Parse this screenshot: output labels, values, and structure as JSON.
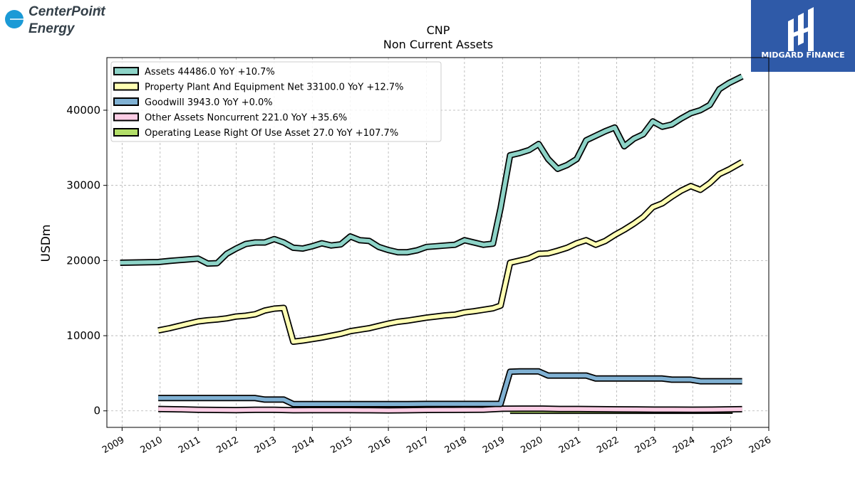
{
  "branding": {
    "company_logo_line1": "CenterPoint",
    "company_logo_line2": "Energy",
    "company_logo_mark": "®",
    "publisher_logo_text": "MIDGARD FINANCE",
    "publisher_color": "#2f5aa8"
  },
  "chart_data": {
    "type": "line",
    "title": "CNP",
    "subtitle": "Non Current  Assets",
    "xlabel": "",
    "ylabel": "USDm",
    "xlim": [
      2008.6,
      2026.0
    ],
    "ylim": [
      -2200,
      47000
    ],
    "x_ticks": [
      "2009",
      "2010",
      "2011",
      "2012",
      "2013",
      "2014",
      "2015",
      "2016",
      "2017",
      "2018",
      "2019",
      "2020",
      "2021",
      "2022",
      "2023",
      "2024",
      "2025",
      "2026"
    ],
    "y_ticks": [
      "0",
      "10000",
      "20000",
      "30000",
      "40000"
    ],
    "y_tick_values": [
      0,
      10000,
      20000,
      30000,
      40000
    ],
    "grid": true,
    "legend_position": "top-left",
    "series": [
      {
        "name": "Assets  44486.0 YoY +10.7%",
        "color": "#8dd3c7",
        "points": [
          [
            2008.95,
            19700
          ],
          [
            2009.95,
            19800
          ],
          [
            2010.25,
            19950
          ],
          [
            2010.5,
            20050
          ],
          [
            2010.75,
            20150
          ],
          [
            2011.0,
            20250
          ],
          [
            2011.25,
            19600
          ],
          [
            2011.5,
            19650
          ],
          [
            2011.75,
            20900
          ],
          [
            2012.0,
            21600
          ],
          [
            2012.25,
            22200
          ],
          [
            2012.5,
            22400
          ],
          [
            2012.75,
            22400
          ],
          [
            2013.0,
            22850
          ],
          [
            2013.25,
            22400
          ],
          [
            2013.5,
            21700
          ],
          [
            2013.75,
            21600
          ],
          [
            2014.0,
            21900
          ],
          [
            2014.25,
            22300
          ],
          [
            2014.5,
            22000
          ],
          [
            2014.75,
            22150
          ],
          [
            2015.0,
            23200
          ],
          [
            2015.25,
            22700
          ],
          [
            2015.5,
            22600
          ],
          [
            2015.75,
            21800
          ],
          [
            2016.0,
            21400
          ],
          [
            2016.25,
            21100
          ],
          [
            2016.5,
            21100
          ],
          [
            2016.75,
            21350
          ],
          [
            2017.0,
            21800
          ],
          [
            2017.25,
            21900
          ],
          [
            2017.5,
            22000
          ],
          [
            2017.75,
            22100
          ],
          [
            2018.0,
            22700
          ],
          [
            2018.25,
            22400
          ],
          [
            2018.5,
            22100
          ],
          [
            2018.75,
            22250
          ],
          [
            2018.95,
            27000
          ],
          [
            2019.2,
            34000
          ],
          [
            2019.45,
            34300
          ],
          [
            2019.7,
            34700
          ],
          [
            2019.95,
            35500
          ],
          [
            2020.2,
            33500
          ],
          [
            2020.45,
            32200
          ],
          [
            2020.7,
            32700
          ],
          [
            2020.95,
            33500
          ],
          [
            2021.2,
            36000
          ],
          [
            2021.45,
            36600
          ],
          [
            2021.7,
            37200
          ],
          [
            2021.95,
            37700
          ],
          [
            2022.2,
            35200
          ],
          [
            2022.45,
            36200
          ],
          [
            2022.7,
            36800
          ],
          [
            2022.95,
            38500
          ],
          [
            2023.2,
            37800
          ],
          [
            2023.45,
            38100
          ],
          [
            2023.7,
            38900
          ],
          [
            2023.95,
            39600
          ],
          [
            2024.2,
            40000
          ],
          [
            2024.45,
            40700
          ],
          [
            2024.7,
            42800
          ],
          [
            2024.95,
            43600
          ],
          [
            2025.3,
            44486
          ]
        ]
      },
      {
        "name": "Property Plant And Equipment Net  33100.0 YoY +12.7%",
        "color": "#ffffb3",
        "points": [
          [
            2009.95,
            10700
          ],
          [
            2010.25,
            11000
          ],
          [
            2010.5,
            11300
          ],
          [
            2010.75,
            11600
          ],
          [
            2011.0,
            11900
          ],
          [
            2011.25,
            12050
          ],
          [
            2011.5,
            12150
          ],
          [
            2011.75,
            12300
          ],
          [
            2012.0,
            12550
          ],
          [
            2012.25,
            12650
          ],
          [
            2012.5,
            12850
          ],
          [
            2012.75,
            13350
          ],
          [
            2013.0,
            13600
          ],
          [
            2013.25,
            13700
          ],
          [
            2013.5,
            9200
          ],
          [
            2013.75,
            9350
          ],
          [
            2014.0,
            9550
          ],
          [
            2014.25,
            9750
          ],
          [
            2014.5,
            10000
          ],
          [
            2014.75,
            10250
          ],
          [
            2015.0,
            10600
          ],
          [
            2015.25,
            10800
          ],
          [
            2015.5,
            11000
          ],
          [
            2015.75,
            11300
          ],
          [
            2016.0,
            11600
          ],
          [
            2016.25,
            11850
          ],
          [
            2016.5,
            12000
          ],
          [
            2016.75,
            12200
          ],
          [
            2017.0,
            12400
          ],
          [
            2017.25,
            12550
          ],
          [
            2017.5,
            12700
          ],
          [
            2017.75,
            12800
          ],
          [
            2018.0,
            13100
          ],
          [
            2018.25,
            13250
          ],
          [
            2018.5,
            13450
          ],
          [
            2018.75,
            13650
          ],
          [
            2018.95,
            14000
          ],
          [
            2019.2,
            19700
          ],
          [
            2019.45,
            20000
          ],
          [
            2019.7,
            20300
          ],
          [
            2019.95,
            20900
          ],
          [
            2020.2,
            20950
          ],
          [
            2020.45,
            21300
          ],
          [
            2020.7,
            21700
          ],
          [
            2020.95,
            22300
          ],
          [
            2021.2,
            22700
          ],
          [
            2021.45,
            22100
          ],
          [
            2021.7,
            22600
          ],
          [
            2021.95,
            23400
          ],
          [
            2022.2,
            24100
          ],
          [
            2022.45,
            24900
          ],
          [
            2022.7,
            25800
          ],
          [
            2022.95,
            27100
          ],
          [
            2023.2,
            27600
          ],
          [
            2023.45,
            28500
          ],
          [
            2023.7,
            29300
          ],
          [
            2023.95,
            29900
          ],
          [
            2024.2,
            29400
          ],
          [
            2024.45,
            30300
          ],
          [
            2024.7,
            31500
          ],
          [
            2024.95,
            32100
          ],
          [
            2025.3,
            33100
          ]
        ]
      },
      {
        "name": "Goodwill  3943.0 YoY +0.0%",
        "color": "#80b1d3",
        "points": [
          [
            2009.95,
            1700
          ],
          [
            2010.5,
            1700
          ],
          [
            2011.0,
            1700
          ],
          [
            2011.5,
            1700
          ],
          [
            2012.0,
            1700
          ],
          [
            2012.5,
            1700
          ],
          [
            2012.75,
            1500
          ],
          [
            2013.0,
            1500
          ],
          [
            2013.25,
            1500
          ],
          [
            2013.5,
            900
          ],
          [
            2014.0,
            900
          ],
          [
            2014.5,
            900
          ],
          [
            2015.0,
            900
          ],
          [
            2015.5,
            900
          ],
          [
            2016.0,
            900
          ],
          [
            2016.5,
            900
          ],
          [
            2017.0,
            920
          ],
          [
            2017.5,
            920
          ],
          [
            2018.0,
            920
          ],
          [
            2018.5,
            920
          ],
          [
            2018.95,
            920
          ],
          [
            2019.2,
            5200
          ],
          [
            2019.45,
            5250
          ],
          [
            2019.7,
            5250
          ],
          [
            2019.95,
            5250
          ],
          [
            2020.2,
            4700
          ],
          [
            2020.45,
            4700
          ],
          [
            2020.7,
            4700
          ],
          [
            2020.95,
            4700
          ],
          [
            2021.2,
            4700
          ],
          [
            2021.45,
            4300
          ],
          [
            2021.7,
            4300
          ],
          [
            2021.95,
            4300
          ],
          [
            2022.5,
            4300
          ],
          [
            2022.95,
            4300
          ],
          [
            2023.2,
            4300
          ],
          [
            2023.45,
            4150
          ],
          [
            2023.95,
            4150
          ],
          [
            2024.2,
            3943
          ],
          [
            2024.7,
            3943
          ],
          [
            2025.3,
            3943
          ]
        ]
      },
      {
        "name": "Other Assets Noncurrent  221.0 YoY +35.6%",
        "color": "#fccde5",
        "points": [
          [
            2009.95,
            250
          ],
          [
            2010.5,
            200
          ],
          [
            2011.0,
            150
          ],
          [
            2011.5,
            120
          ],
          [
            2012.0,
            100
          ],
          [
            2012.5,
            150
          ],
          [
            2013.0,
            150
          ],
          [
            2013.5,
            80
          ],
          [
            2014.0,
            100
          ],
          [
            2014.5,
            100
          ],
          [
            2015.0,
            100
          ],
          [
            2015.5,
            80
          ],
          [
            2016.0,
            60
          ],
          [
            2016.5,
            80
          ],
          [
            2017.0,
            120
          ],
          [
            2017.5,
            130
          ],
          [
            2018.0,
            150
          ],
          [
            2018.5,
            160
          ],
          [
            2019.0,
            280
          ],
          [
            2019.5,
            300
          ],
          [
            2020.0,
            300
          ],
          [
            2020.5,
            250
          ],
          [
            2021.0,
            250
          ],
          [
            2021.5,
            220
          ],
          [
            2022.0,
            200
          ],
          [
            2022.5,
            180
          ],
          [
            2023.0,
            170
          ],
          [
            2023.5,
            170
          ],
          [
            2024.0,
            160
          ],
          [
            2024.5,
            163
          ],
          [
            2025.3,
            221
          ]
        ]
      },
      {
        "name": "Operating Lease Right Of Use Asset  27.0 YoY +107.7%",
        "color": "#b3de69",
        "points": [
          [
            2019.2,
            13
          ],
          [
            2020.0,
            13
          ],
          [
            2021.0,
            13
          ],
          [
            2022.0,
            13
          ],
          [
            2023.0,
            13
          ],
          [
            2024.0,
            13
          ],
          [
            2025.05,
            27
          ]
        ]
      }
    ]
  }
}
